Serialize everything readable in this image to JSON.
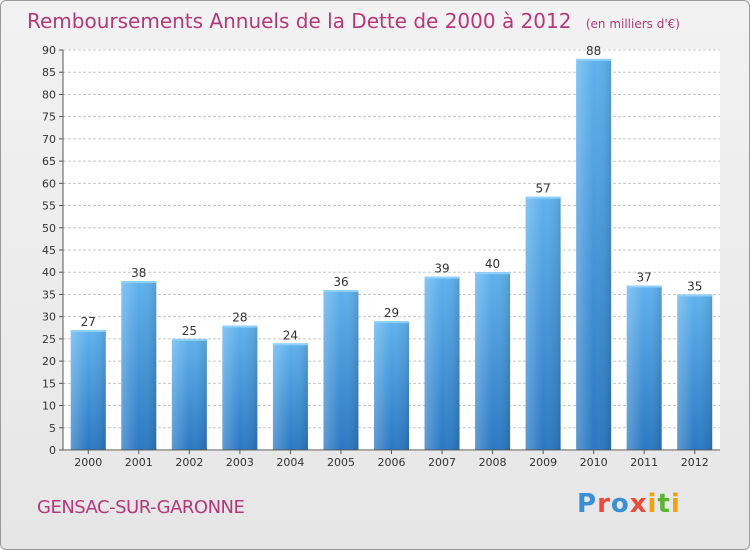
{
  "title": "Remboursements Annuels de la Dette de 2000 à 2012",
  "subtitle": "(en milliers d'€)",
  "commune": "GENSAC-SUR-GARONNE",
  "logo": {
    "letters": [
      "P",
      "r",
      "o",
      "x",
      "i",
      "t",
      "i"
    ]
  },
  "colors": {
    "bar": "#3a8fd6",
    "title": "#b4387a",
    "grid": "#c8c8c8"
  },
  "chart_data": {
    "type": "bar",
    "title": "Remboursements Annuels de la Dette de 2000 à 2012",
    "categories": [
      "2000",
      "2001",
      "2002",
      "2003",
      "2004",
      "2005",
      "2006",
      "2007",
      "2008",
      "2009",
      "2010",
      "2011",
      "2012"
    ],
    "values": [
      27,
      38,
      25,
      28,
      24,
      36,
      29,
      39,
      40,
      57,
      88,
      37,
      35
    ],
    "ylim": [
      0,
      90
    ],
    "yticks": [
      0,
      5,
      10,
      15,
      20,
      25,
      30,
      35,
      40,
      45,
      50,
      55,
      60,
      65,
      70,
      75,
      80,
      85,
      90
    ],
    "grid": true,
    "data_labels": true
  }
}
